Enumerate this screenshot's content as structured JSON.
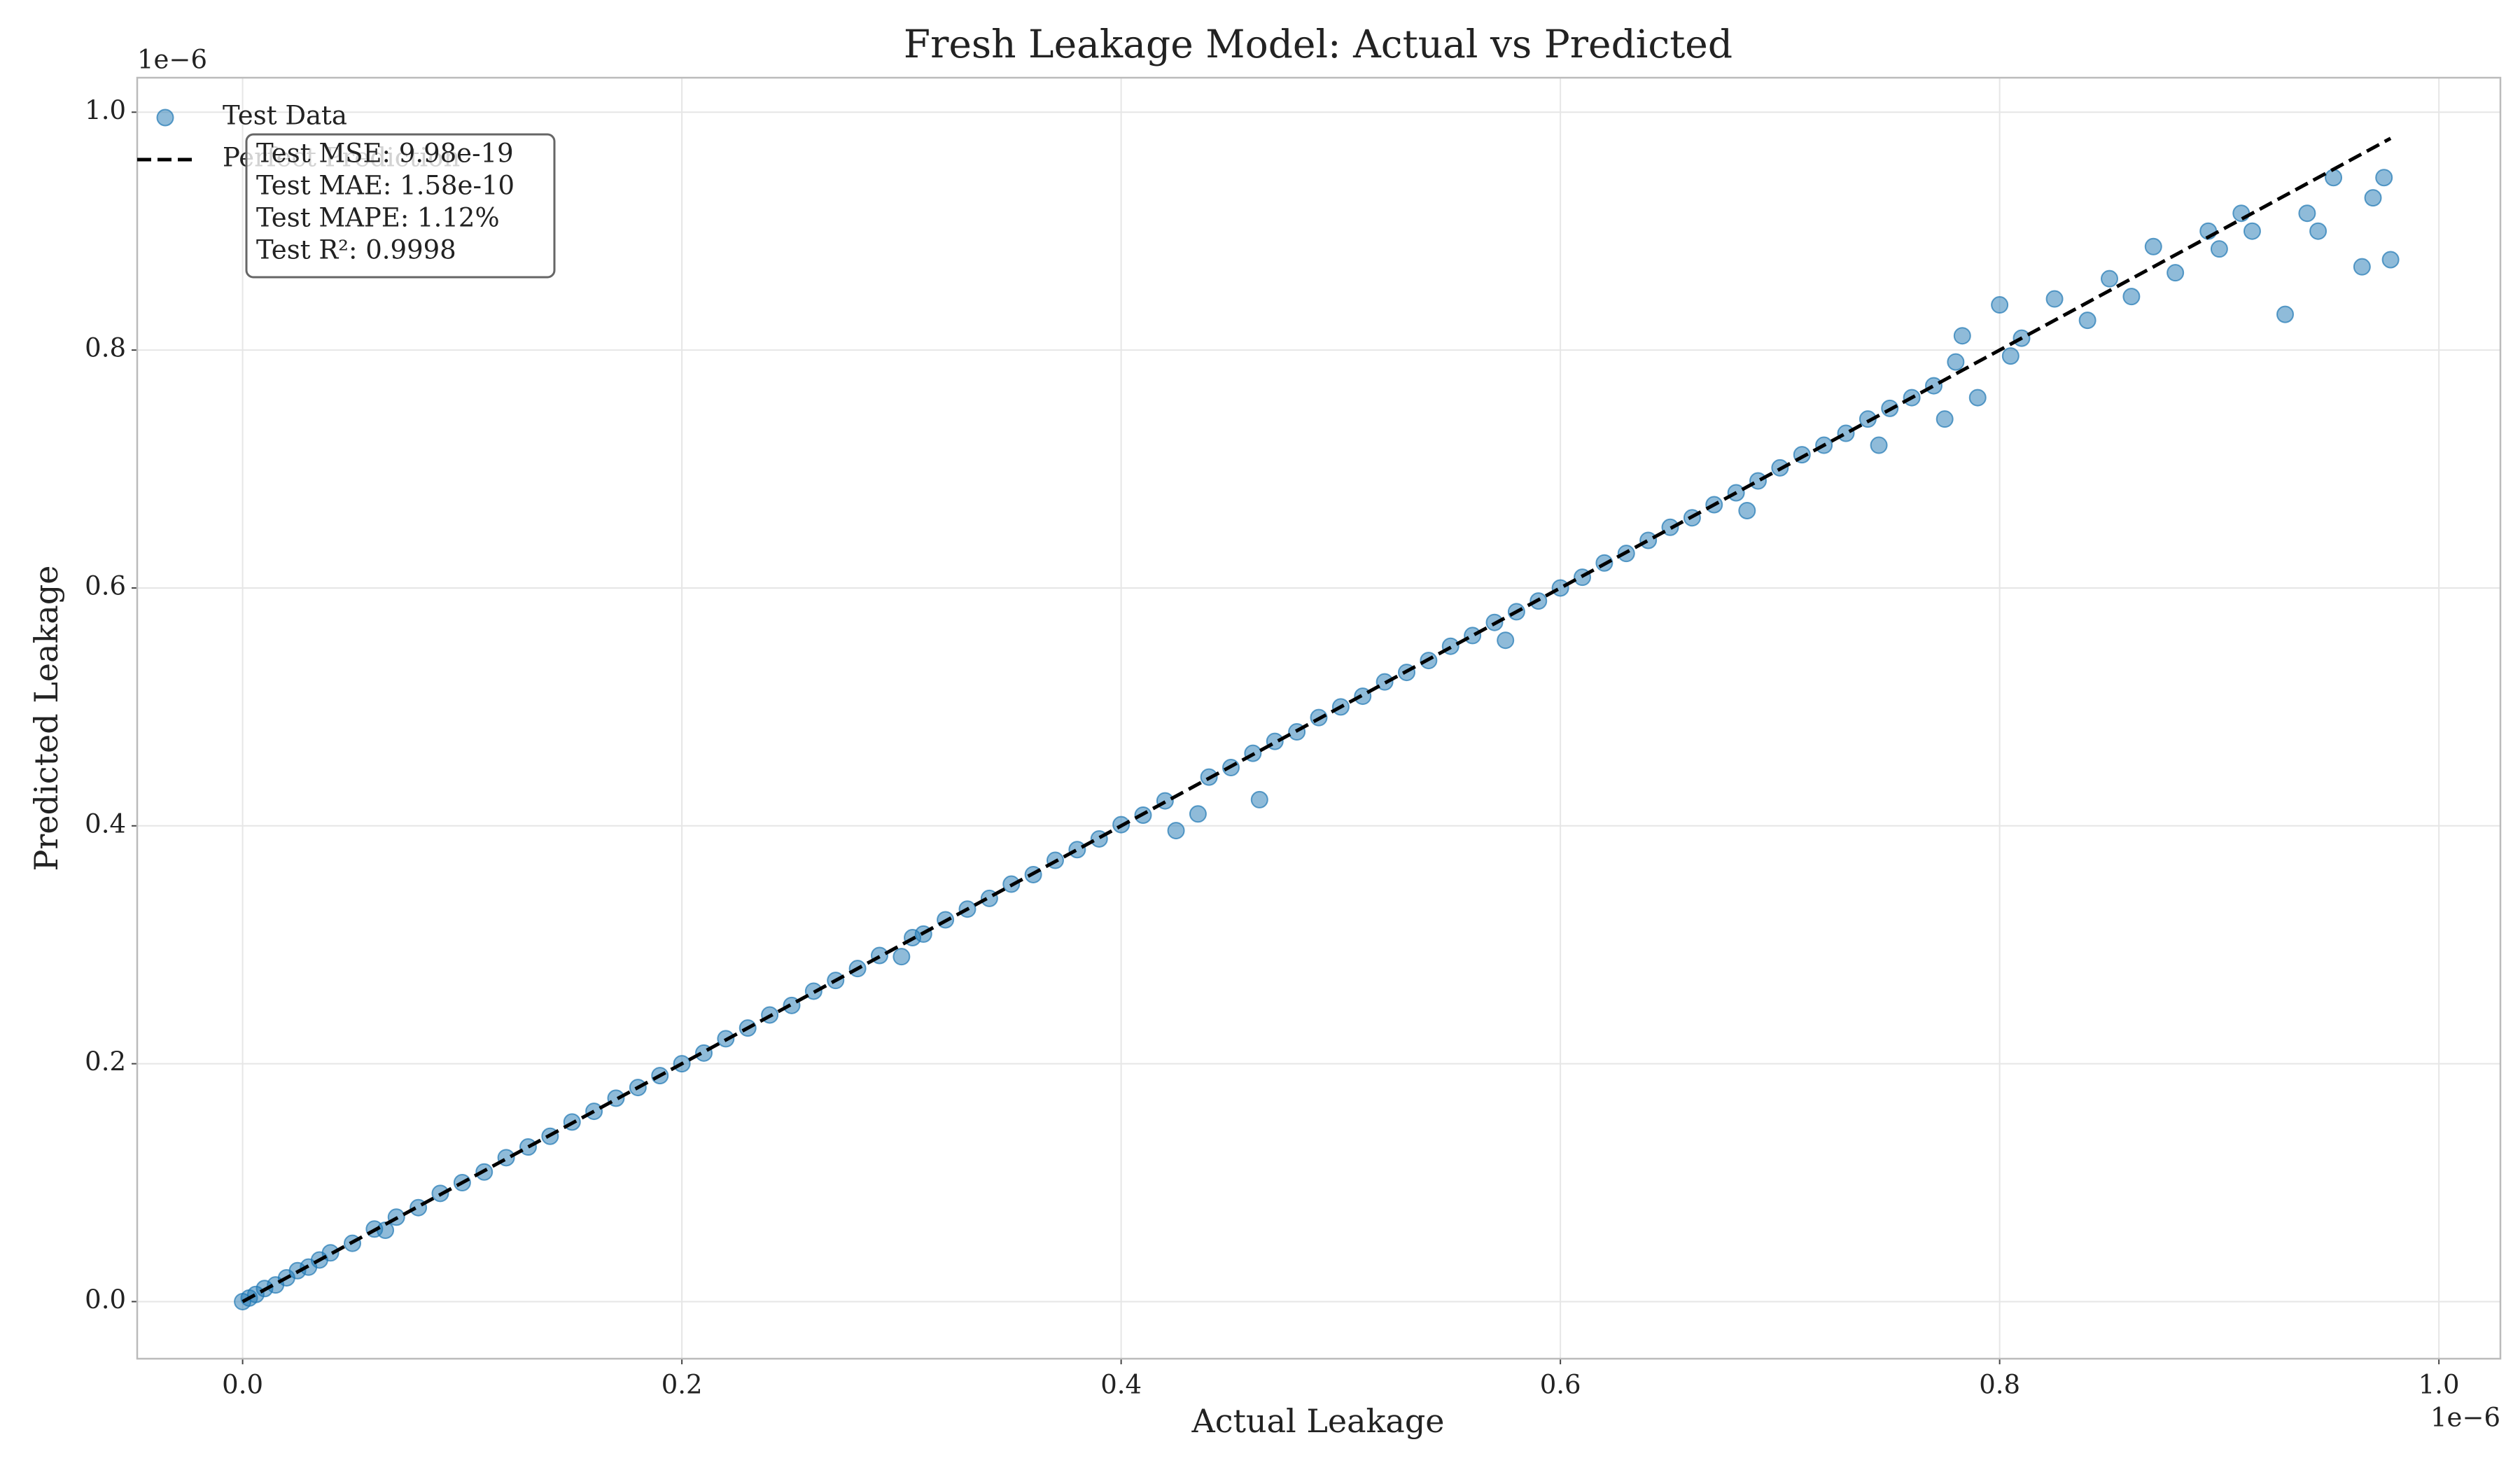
{
  "chart_data": {
    "type": "scatter",
    "title": "Fresh Leakage Model: Actual vs Predicted",
    "x_label": "Actual Leakage",
    "y_label": "Predicted Leakage",
    "x_offset_label": "1e−6",
    "y_offset_label": "1e−6",
    "xlim": [
      -0.048,
      1.028
    ],
    "ylim": [
      -0.048,
      1.029
    ],
    "xticks": [
      {
        "value": 0,
        "label": "0.0"
      },
      0.2,
      0.4,
      0.6,
      0.8,
      {
        "value": 1,
        "label": "1.0"
      }
    ],
    "yticks": [
      {
        "value": 0,
        "label": "0.0"
      },
      0.2,
      0.4,
      0.6,
      0.8,
      {
        "value": 1,
        "label": "1.0"
      }
    ],
    "grid": true,
    "legend": "upper left",
    "series": [
      {
        "name": "Test Data",
        "color": "#1f77b4",
        "x": [
          0.0,
          0.003,
          0.006,
          0.01,
          0.015,
          0.02,
          0.025,
          0.03,
          0.035,
          0.04,
          0.05,
          0.06,
          0.065,
          0.07,
          0.08,
          0.09,
          0.1,
          0.11,
          0.12,
          0.13,
          0.14,
          0.15,
          0.16,
          0.17,
          0.18,
          0.19,
          0.2,
          0.21,
          0.22,
          0.23,
          0.24,
          0.25,
          0.26,
          0.27,
          0.28,
          0.29,
          0.3,
          0.305,
          0.31,
          0.32,
          0.33,
          0.34,
          0.35,
          0.36,
          0.37,
          0.38,
          0.39,
          0.4,
          0.41,
          0.42,
          0.425,
          0.435,
          0.44,
          0.45,
          0.46,
          0.463,
          0.47,
          0.48,
          0.49,
          0.5,
          0.51,
          0.52,
          0.53,
          0.54,
          0.55,
          0.56,
          0.57,
          0.575,
          0.58,
          0.59,
          0.6,
          0.61,
          0.62,
          0.63,
          0.64,
          0.65,
          0.66,
          0.67,
          0.68,
          0.685,
          0.69,
          0.7,
          0.71,
          0.72,
          0.73,
          0.74,
          0.745,
          0.75,
          0.76,
          0.77,
          0.775,
          0.78,
          0.783,
          0.79,
          0.8,
          0.805,
          0.81,
          0.825,
          0.84,
          0.85,
          0.86,
          0.87,
          0.88,
          0.895,
          0.9,
          0.91,
          0.915,
          0.93,
          0.94,
          0.945,
          0.952,
          0.965,
          0.97,
          0.975,
          0.978
        ],
        "values": [
          0.0,
          0.003,
          0.006,
          0.011,
          0.014,
          0.02,
          0.026,
          0.029,
          0.035,
          0.041,
          0.049,
          0.061,
          0.06,
          0.071,
          0.079,
          0.091,
          0.1,
          0.109,
          0.121,
          0.13,
          0.139,
          0.151,
          0.16,
          0.171,
          0.18,
          0.19,
          0.2,
          0.209,
          0.221,
          0.23,
          0.241,
          0.249,
          0.261,
          0.27,
          0.28,
          0.291,
          0.29,
          0.306,
          0.309,
          0.321,
          0.33,
          0.339,
          0.351,
          0.359,
          0.371,
          0.38,
          0.389,
          0.401,
          0.409,
          0.421,
          0.396,
          0.41,
          0.441,
          0.449,
          0.461,
          0.422,
          0.471,
          0.479,
          0.491,
          0.5,
          0.509,
          0.521,
          0.529,
          0.539,
          0.551,
          0.56,
          0.571,
          0.556,
          0.58,
          0.589,
          0.6,
          0.609,
          0.621,
          0.629,
          0.64,
          0.651,
          0.659,
          0.67,
          0.68,
          0.665,
          0.69,
          0.701,
          0.712,
          0.72,
          0.73,
          0.742,
          0.72,
          0.751,
          0.76,
          0.77,
          0.742,
          0.79,
          0.812,
          0.76,
          0.838,
          0.795,
          0.81,
          0.843,
          0.825,
          0.86,
          0.845,
          0.887,
          0.865,
          0.9,
          0.885,
          0.915,
          0.9,
          0.83,
          0.915,
          0.9,
          0.945,
          0.87,
          0.928,
          0.945,
          0.876
        ]
      },
      {
        "name": "Perfect Prediction",
        "color": "#000000",
        "style": "dashed",
        "x": [
          0.0,
          0.978
        ],
        "values": [
          0.0,
          0.978
        ]
      }
    ],
    "stats": [
      "Test MSE: 9.98e-19",
      "Test MAE: 1.58e-10",
      "Test MAPE: 1.12%",
      "Test R²: 0.9998"
    ]
  }
}
